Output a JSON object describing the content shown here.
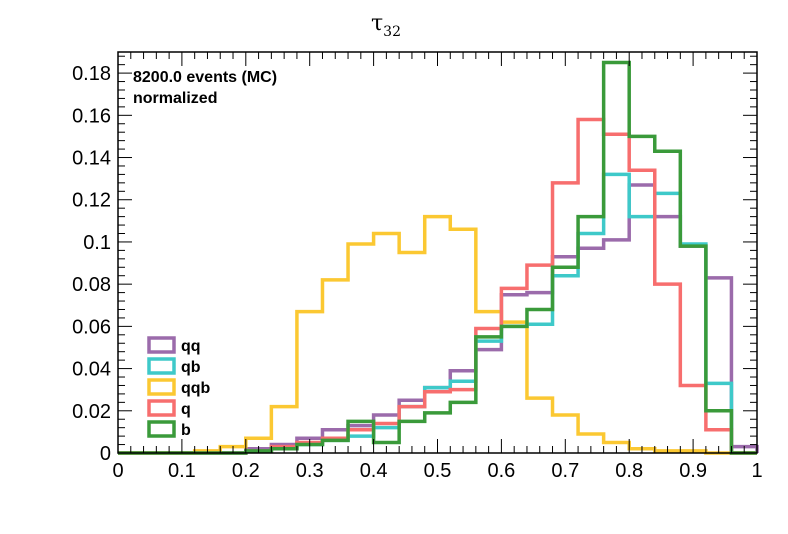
{
  "chart_data": {
    "type": "histogram",
    "title": "τ",
    "title_subscript": "32",
    "annotations": [
      "8200.0 events (MC)",
      "normalized"
    ],
    "xlim": [
      0,
      1
    ],
    "ylim": [
      0,
      0.19
    ],
    "x_ticks": [
      0,
      0.1,
      0.2,
      0.3,
      0.4,
      0.5,
      0.6,
      0.7,
      0.8,
      0.9,
      1
    ],
    "x_tick_labels": [
      "0",
      "0.1",
      "0.2",
      "0.3",
      "0.4",
      "0.5",
      "0.6",
      "0.7",
      "0.8",
      "0.9",
      "1"
    ],
    "y_ticks": [
      0,
      0.02,
      0.04,
      0.06,
      0.08,
      0.1,
      0.12,
      0.14,
      0.16,
      0.18
    ],
    "y_tick_labels": [
      "0",
      "0.02",
      "0.04",
      "0.06",
      "0.08",
      "0.1",
      "0.12",
      "0.14",
      "0.16",
      "0.18"
    ],
    "bin_edges": [
      0,
      0.04,
      0.08,
      0.12,
      0.16,
      0.2,
      0.24,
      0.28,
      0.32,
      0.36,
      0.4,
      0.44,
      0.48,
      0.52,
      0.56,
      0.6,
      0.64,
      0.68,
      0.72,
      0.76,
      0.8,
      0.84,
      0.88,
      0.92,
      0.96,
      1.0
    ],
    "legend_position": "lower-left",
    "series": [
      {
        "name": "qq",
        "color": "#9b6bab",
        "values": [
          0,
          0,
          0,
          0,
          0,
          0.002,
          0.004,
          0.007,
          0.011,
          0.013,
          0.018,
          0.025,
          0.031,
          0.039,
          0.049,
          0.075,
          0.076,
          0.093,
          0.097,
          0.101,
          0.127,
          0.112,
          0.098,
          0.083,
          0.003
        ]
      },
      {
        "name": "qb",
        "color": "#3ec9c9",
        "values": [
          0,
          0,
          0,
          0,
          0,
          0.001,
          0.002,
          0.004,
          0.006,
          0.008,
          0.012,
          0.022,
          0.031,
          0.034,
          0.053,
          0.06,
          0.061,
          0.084,
          0.104,
          0.132,
          0.112,
          0.123,
          0.099,
          0.033,
          0
        ]
      },
      {
        "name": "qqb",
        "color": "#fbc832",
        "values": [
          0,
          0,
          0,
          0.001,
          0.003,
          0.007,
          0.022,
          0.067,
          0.082,
          0.099,
          0.104,
          0.095,
          0.112,
          0.106,
          0.067,
          0.062,
          0.026,
          0.018,
          0.009,
          0.005,
          0.002,
          0.001,
          0.001,
          0,
          0
        ]
      },
      {
        "name": "q",
        "color": "#f76e6e",
        "values": [
          0,
          0,
          0,
          0,
          0,
          0.001,
          0.003,
          0.005,
          0.007,
          0.011,
          0.014,
          0.022,
          0.029,
          0.03,
          0.059,
          0.078,
          0.089,
          0.128,
          0.158,
          0.151,
          0.134,
          0.08,
          0.032,
          0.011,
          0
        ]
      },
      {
        "name": "b",
        "color": "#3a9a3a",
        "values": [
          0,
          0,
          0,
          0,
          0,
          0.001,
          0.002,
          0.004,
          0.006,
          0.015,
          0.005,
          0.015,
          0.019,
          0.024,
          0.055,
          0.06,
          0.068,
          0.088,
          0.112,
          0.185,
          0.15,
          0.143,
          0.098,
          0.02,
          0
        ]
      }
    ]
  }
}
